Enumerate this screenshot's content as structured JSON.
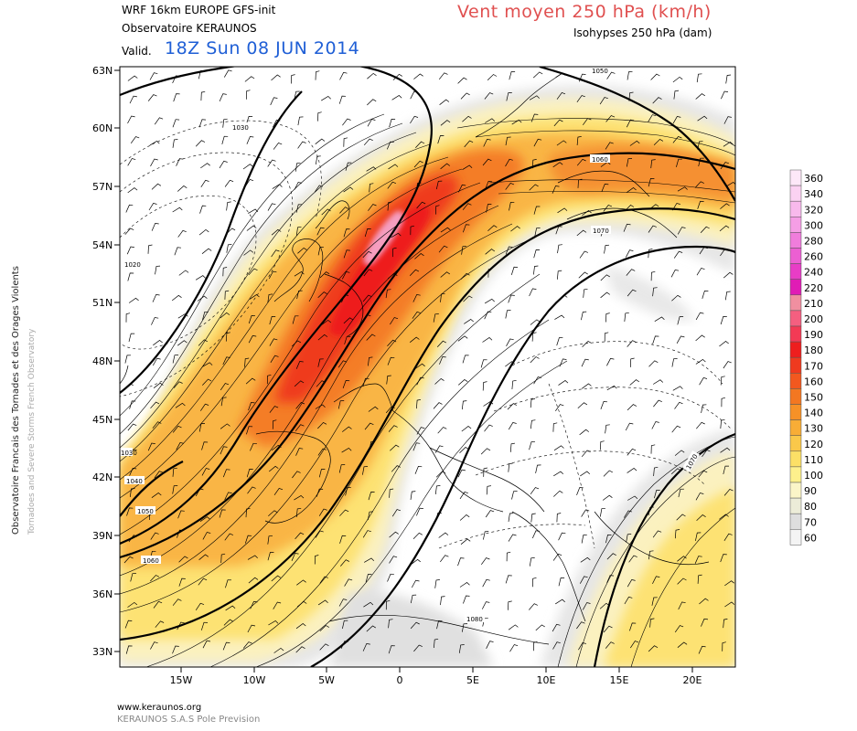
{
  "header": {
    "model": "WRF 16km EUROPE   GFS-init",
    "observatory": "Observatoire KERAUNOS",
    "valid_label": "Valid.",
    "valid_date": "18Z Sun 08 JUN 2014",
    "field_title": "Vent moyen 250 hPa (km/h)",
    "field_subtitle": "Isohypses 250 hPa (dam)"
  },
  "side_text": {
    "line1": "Observatoire Francais des Tornades et des Orages Violents",
    "line2": "Tornadoes and Severe Storms French Observatory"
  },
  "footer": {
    "url": "www.keraunos.org",
    "company": "KERAUNOS S.A.S Pole Prevision"
  },
  "map": {
    "lat_labels": [
      "63N",
      "60N",
      "57N",
      "54N",
      "51N",
      "48N",
      "45N",
      "42N",
      "39N",
      "36N",
      "33N"
    ],
    "lon_labels": [
      "15W",
      "10W",
      "5W",
      "0",
      "5E",
      "10E",
      "15E",
      "20E"
    ],
    "isohypse_labels": [
      "1050",
      "1030",
      "1060",
      "1020",
      "1070",
      "1030",
      "1040",
      "1050",
      "1060",
      "1080",
      "1070"
    ]
  },
  "legend": {
    "levels": [
      {
        "label": "360",
        "color": "#fde8f8"
      },
      {
        "label": "340",
        "color": "#fbd2f2"
      },
      {
        "label": "320",
        "color": "#f8b9ec"
      },
      {
        "label": "300",
        "color": "#f59ee5"
      },
      {
        "label": "280",
        "color": "#f07ddc"
      },
      {
        "label": "260",
        "color": "#ec5fd2"
      },
      {
        "label": "240",
        "color": "#e83dc6"
      },
      {
        "label": "220",
        "color": "#e01cb5"
      },
      {
        "label": "210",
        "color": "#f08fa0"
      },
      {
        "label": "200",
        "color": "#f45f80"
      },
      {
        "label": "190",
        "color": "#f33a55"
      },
      {
        "label": "180",
        "color": "#ee1e1e"
      },
      {
        "label": "170",
        "color": "#ef3a1f"
      },
      {
        "label": "160",
        "color": "#f2581f"
      },
      {
        "label": "150",
        "color": "#f37721"
      },
      {
        "label": "140",
        "color": "#f69127"
      },
      {
        "label": "130",
        "color": "#f8ad36"
      },
      {
        "label": "120",
        "color": "#fac84a"
      },
      {
        "label": "110",
        "color": "#fce066"
      },
      {
        "label": "100",
        "color": "#fdf08c"
      },
      {
        "label": "90",
        "color": "#fbf5c8"
      },
      {
        "label": "80",
        "color": "#ececd8"
      },
      {
        "label": "70",
        "color": "#dedede"
      },
      {
        "label": "60",
        "color": "#f4f4f4"
      }
    ]
  }
}
